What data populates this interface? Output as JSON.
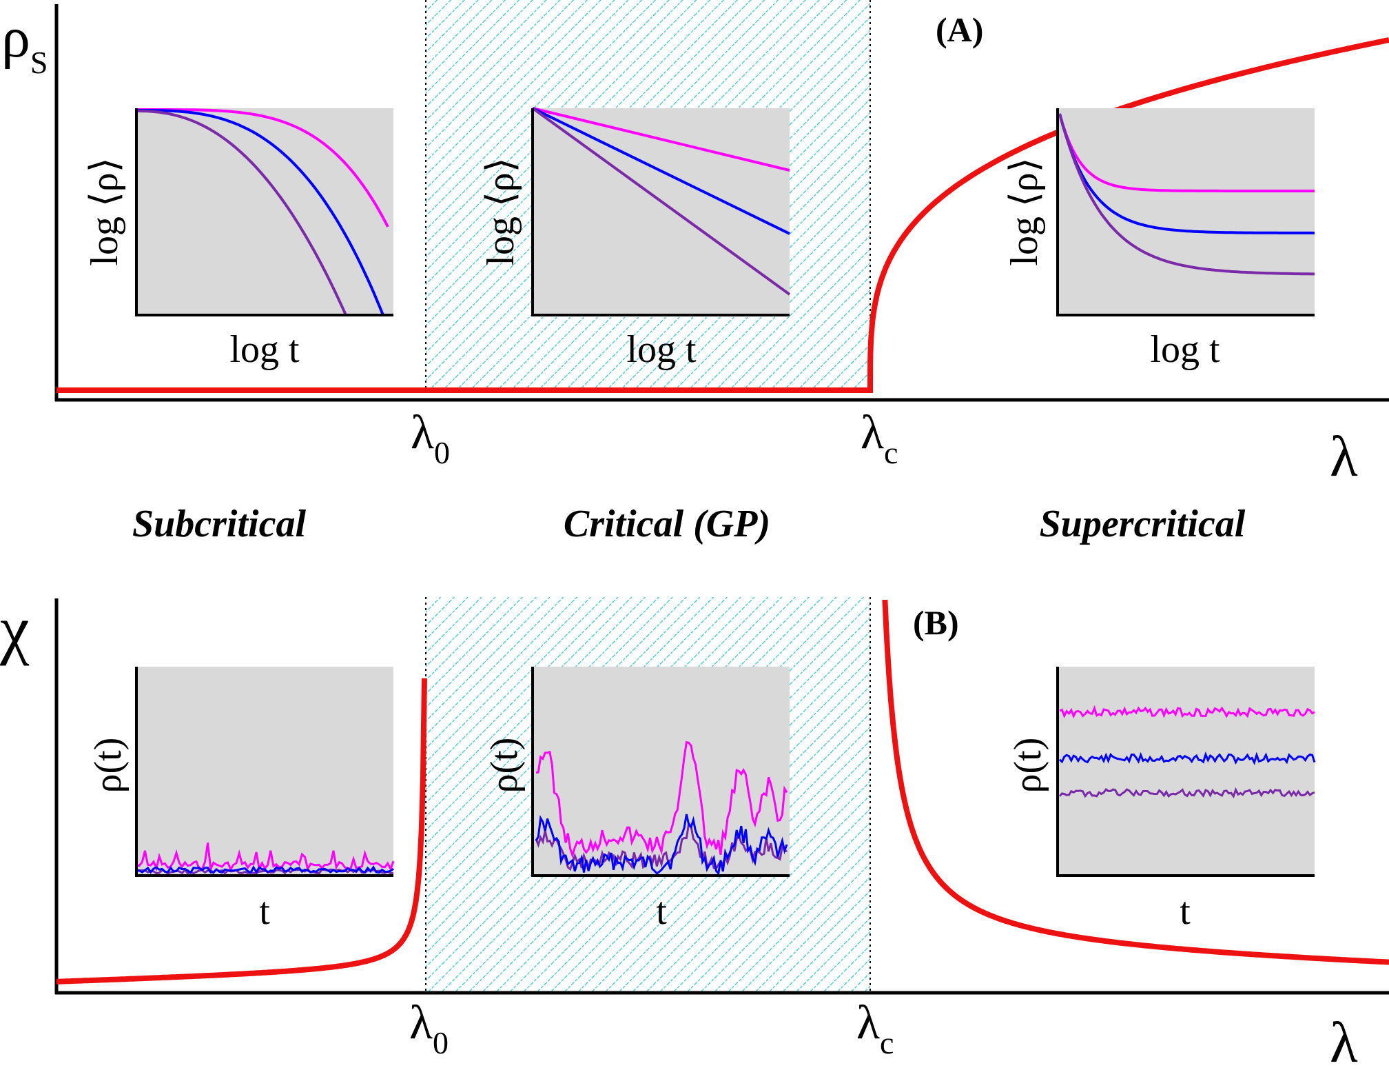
{
  "panel_a": {
    "tag": "(A)",
    "y_axis_symbol": "ρ",
    "y_axis_sub": "S",
    "x_axis_symbol": "λ",
    "lambda0_symbol": "λ",
    "lambda0_sub": "0",
    "lambdac_symbol": "λ",
    "lambdac_sub": "c",
    "insets": [
      {
        "ylabel": "log ⟨ρ⟩",
        "xlabel": "log t"
      },
      {
        "ylabel": "log ⟨ρ⟩",
        "xlabel": "log t"
      },
      {
        "ylabel": "log ⟨ρ⟩",
        "xlabel": "log t"
      }
    ]
  },
  "regions": {
    "subcritical": "Subcritical",
    "critical": "Critical (GP)",
    "supercritical": "Supercritical"
  },
  "panel_b": {
    "tag": "(B)",
    "y_axis_symbol": "χ",
    "x_axis_symbol": "λ",
    "lambda0_symbol": "λ",
    "lambda0_sub": "0",
    "lambdac_symbol": "λ",
    "lambdac_sub": "c",
    "insets": [
      {
        "ylabel": "ρ(t)",
        "xlabel": "t"
      },
      {
        "ylabel": "ρ(t)",
        "xlabel": "t"
      },
      {
        "ylabel": "ρ(t)",
        "xlabel": "t"
      }
    ]
  },
  "colors": {
    "main_curve": "#ee1111",
    "hatch": "#33c6d6",
    "inset_bg": "#d9d9d9",
    "series": [
      "#ff00ff",
      "#0000ff",
      "#7a2aa8"
    ]
  }
}
